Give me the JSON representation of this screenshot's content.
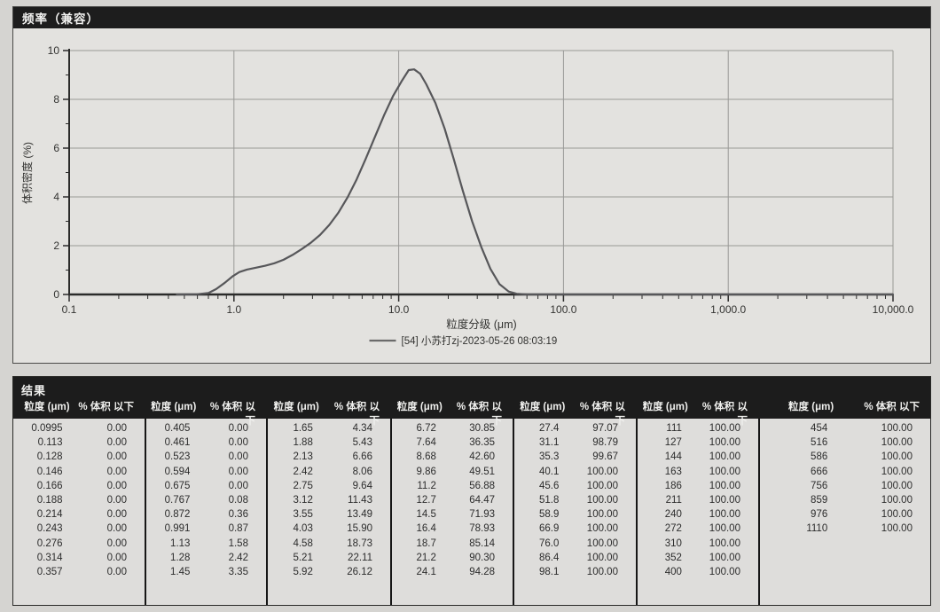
{
  "frequency_panel": {
    "title": "频率（兼容）"
  },
  "results_panel": {
    "title": "结果"
  },
  "colors": {
    "paper": "#d5d4d1",
    "panel_bg": "#e3e2df",
    "titlebar_bg": "#1d1d1d",
    "grid": "#999996",
    "axis": "#2b2b2a",
    "curve": "#57575a",
    "legend_line": "#6b6b6b"
  },
  "chart_data": [
    {
      "type": "line",
      "title": "频率（兼容）",
      "xlabel": "粒度分级 (μm)",
      "ylabel": "体积密度 (%)",
      "x_scale": "log",
      "xlim": [
        0.1,
        10000
      ],
      "ylim": [
        0,
        10
      ],
      "x_ticks": [
        "0.1",
        "1.0",
        "10.0",
        "100.0",
        "1,000.0",
        "10,000.0"
      ],
      "x_tick_values": [
        0.1,
        1,
        10,
        100,
        1000,
        10000
      ],
      "y_ticks": [
        0,
        2,
        4,
        6,
        8,
        10
      ],
      "grid": true,
      "legend_position": "bottom-center",
      "series": [
        {
          "name": "[54] 小苏打zj-2023-05-26 08:03:19",
          "color": "#57575a",
          "points": [
            [
              0.45,
              0
            ],
            [
              0.6,
              0.01
            ],
            [
              0.7,
              0.06
            ],
            [
              0.78,
              0.22
            ],
            [
              0.88,
              0.48
            ],
            [
              0.98,
              0.74
            ],
            [
              1.08,
              0.92
            ],
            [
              1.2,
              1.02
            ],
            [
              1.36,
              1.1
            ],
            [
              1.55,
              1.18
            ],
            [
              1.76,
              1.28
            ],
            [
              2.0,
              1.42
            ],
            [
              2.27,
              1.62
            ],
            [
              2.58,
              1.86
            ],
            [
              2.93,
              2.12
            ],
            [
              3.33,
              2.44
            ],
            [
              3.79,
              2.85
            ],
            [
              4.3,
              3.35
            ],
            [
              4.89,
              3.98
            ],
            [
              5.56,
              4.72
            ],
            [
              6.31,
              5.56
            ],
            [
              7.17,
              6.46
            ],
            [
              8.15,
              7.35
            ],
            [
              9.26,
              8.15
            ],
            [
              10.5,
              8.78
            ],
            [
              11.5,
              9.2
            ],
            [
              12.4,
              9.23
            ],
            [
              13.5,
              9.05
            ],
            [
              14.7,
              8.62
            ],
            [
              16.7,
              7.85
            ],
            [
              19.0,
              6.8
            ],
            [
              21.6,
              5.55
            ],
            [
              24.5,
              4.25
            ],
            [
              27.9,
              3.0
            ],
            [
              31.7,
              1.95
            ],
            [
              36.0,
              1.05
            ],
            [
              40.9,
              0.42
            ],
            [
              46.5,
              0.12
            ],
            [
              52.0,
              0.03
            ],
            [
              60.0,
              0
            ],
            [
              100,
              0
            ],
            [
              1000,
              0
            ],
            [
              10000,
              0
            ]
          ]
        }
      ]
    },
    {
      "type": "table",
      "title": "结果",
      "column_header_pair": [
        "粒度 (μm)",
        "% 体积 以下"
      ],
      "groups": [
        [
          [
            "0.0995",
            "0.00"
          ],
          [
            "0.113",
            "0.00"
          ],
          [
            "0.128",
            "0.00"
          ],
          [
            "0.146",
            "0.00"
          ],
          [
            "0.166",
            "0.00"
          ],
          [
            "0.188",
            "0.00"
          ],
          [
            "0.214",
            "0.00"
          ],
          [
            "0.243",
            "0.00"
          ],
          [
            "0.276",
            "0.00"
          ],
          [
            "0.314",
            "0.00"
          ],
          [
            "0.357",
            "0.00"
          ]
        ],
        [
          [
            "0.405",
            "0.00"
          ],
          [
            "0.461",
            "0.00"
          ],
          [
            "0.523",
            "0.00"
          ],
          [
            "0.594",
            "0.00"
          ],
          [
            "0.675",
            "0.00"
          ],
          [
            "0.767",
            "0.08"
          ],
          [
            "0.872",
            "0.36"
          ],
          [
            "0.991",
            "0.87"
          ],
          [
            "1.13",
            "1.58"
          ],
          [
            "1.28",
            "2.42"
          ],
          [
            "1.45",
            "3.35"
          ]
        ],
        [
          [
            "1.65",
            "4.34"
          ],
          [
            "1.88",
            "5.43"
          ],
          [
            "2.13",
            "6.66"
          ],
          [
            "2.42",
            "8.06"
          ],
          [
            "2.75",
            "9.64"
          ],
          [
            "3.12",
            "11.43"
          ],
          [
            "3.55",
            "13.49"
          ],
          [
            "4.03",
            "15.90"
          ],
          [
            "4.58",
            "18.73"
          ],
          [
            "5.21",
            "22.11"
          ],
          [
            "5.92",
            "26.12"
          ]
        ],
        [
          [
            "6.72",
            "30.85"
          ],
          [
            "7.64",
            "36.35"
          ],
          [
            "8.68",
            "42.60"
          ],
          [
            "9.86",
            "49.51"
          ],
          [
            "11.2",
            "56.88"
          ],
          [
            "12.7",
            "64.47"
          ],
          [
            "14.5",
            "71.93"
          ],
          [
            "16.4",
            "78.93"
          ],
          [
            "18.7",
            "85.14"
          ],
          [
            "21.2",
            "90.30"
          ],
          [
            "24.1",
            "94.28"
          ]
        ],
        [
          [
            "27.4",
            "97.07"
          ],
          [
            "31.1",
            "98.79"
          ],
          [
            "35.3",
            "99.67"
          ],
          [
            "40.1",
            "100.00"
          ],
          [
            "45.6",
            "100.00"
          ],
          [
            "51.8",
            "100.00"
          ],
          [
            "58.9",
            "100.00"
          ],
          [
            "66.9",
            "100.00"
          ],
          [
            "76.0",
            "100.00"
          ],
          [
            "86.4",
            "100.00"
          ],
          [
            "98.1",
            "100.00"
          ]
        ],
        [
          [
            "111",
            "100.00"
          ],
          [
            "127",
            "100.00"
          ],
          [
            "144",
            "100.00"
          ],
          [
            "163",
            "100.00"
          ],
          [
            "186",
            "100.00"
          ],
          [
            "211",
            "100.00"
          ],
          [
            "240",
            "100.00"
          ],
          [
            "272",
            "100.00"
          ],
          [
            "310",
            "100.00"
          ],
          [
            "352",
            "100.00"
          ],
          [
            "400",
            "100.00"
          ]
        ],
        [
          [
            "454",
            "100.00"
          ],
          [
            "516",
            "100.00"
          ],
          [
            "586",
            "100.00"
          ],
          [
            "666",
            "100.00"
          ],
          [
            "756",
            "100.00"
          ],
          [
            "859",
            "100.00"
          ],
          [
            "976",
            "100.00"
          ],
          [
            "1110",
            "100.00"
          ]
        ]
      ]
    }
  ]
}
